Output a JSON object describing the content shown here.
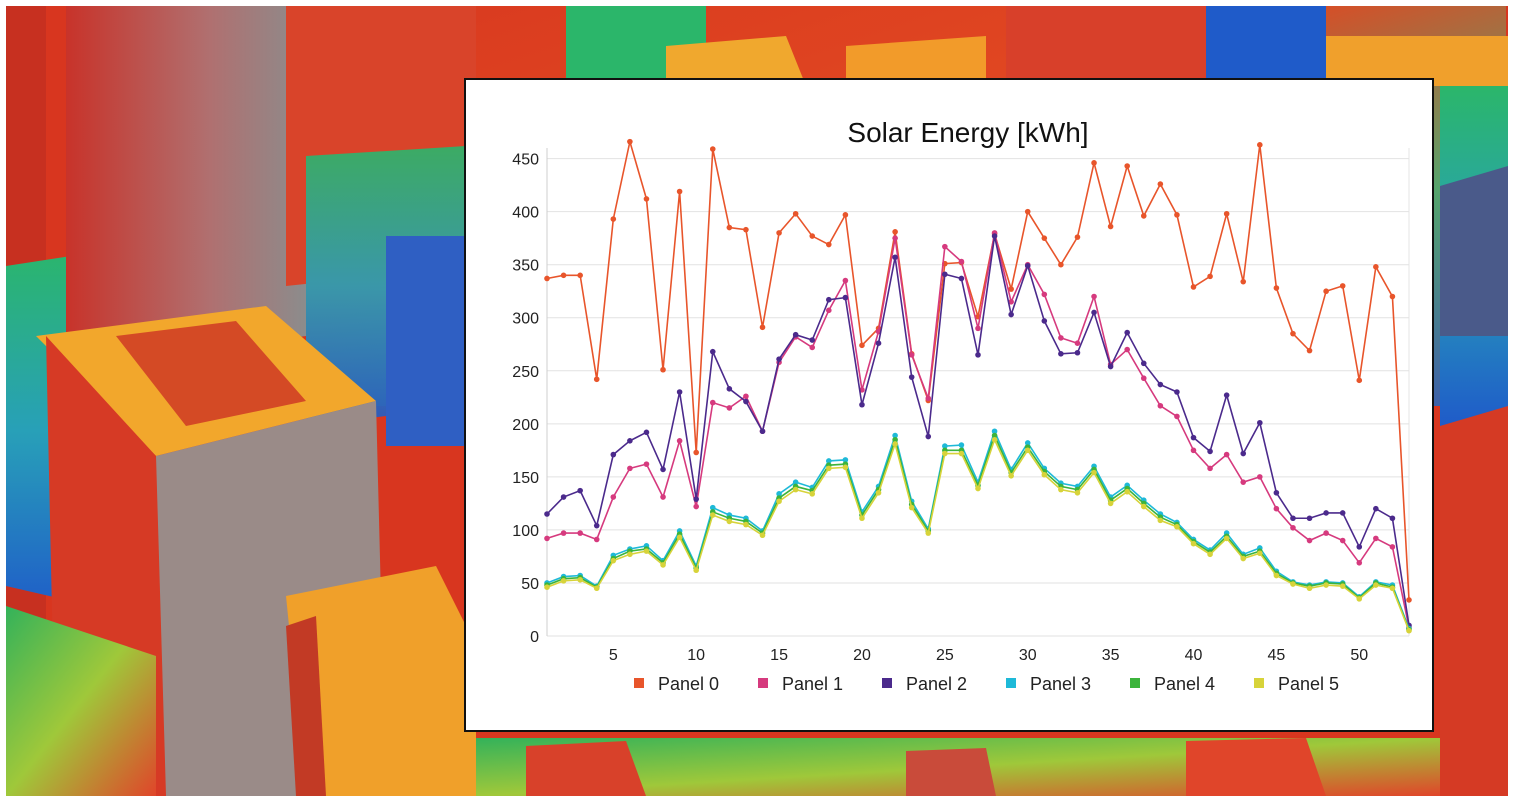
{
  "chart_data": {
    "type": "line",
    "title": "Solar Energy [kWh]",
    "xlabel": "",
    "ylabel": "",
    "x": [
      1,
      2,
      3,
      4,
      5,
      6,
      7,
      8,
      9,
      10,
      11,
      12,
      13,
      14,
      15,
      16,
      17,
      18,
      19,
      20,
      21,
      22,
      23,
      24,
      25,
      26,
      27,
      28,
      29,
      30,
      31,
      32,
      33,
      34,
      35,
      36,
      37,
      38,
      39,
      40,
      41,
      42,
      43,
      44,
      45,
      46,
      47,
      48,
      49,
      50,
      51,
      52,
      53
    ],
    "xlim": [
      1,
      53
    ],
    "ylim": [
      0,
      460
    ],
    "x_ticks": [
      5,
      10,
      15,
      20,
      25,
      30,
      35,
      40,
      45,
      50
    ],
    "y_ticks": [
      0,
      50,
      100,
      150,
      200,
      250,
      300,
      350,
      400,
      450
    ],
    "grid": "horizontal",
    "legend_position": "bottom",
    "series": [
      {
        "name": "Panel 0",
        "color": "#e8552b",
        "values": [
          337,
          340,
          340,
          242,
          393,
          466,
          412,
          251,
          419,
          173,
          459,
          385,
          383,
          291,
          380,
          398,
          377,
          369,
          397,
          274,
          290,
          381,
          266,
          222,
          351,
          352,
          301,
          379,
          327,
          400,
          375,
          350,
          376,
          446,
          386,
          443,
          396,
          426,
          397,
          329,
          339,
          398,
          334,
          463,
          328,
          285,
          269,
          325,
          330,
          241,
          348,
          320,
          34
        ]
      },
      {
        "name": "Panel 1",
        "color": "#d63a7e",
        "values": [
          92,
          97,
          97,
          91,
          131,
          158,
          162,
          131,
          184,
          122,
          220,
          215,
          226,
          193,
          258,
          282,
          272,
          307,
          335,
          232,
          287,
          375,
          265,
          224,
          367,
          353,
          290,
          380,
          315,
          350,
          322,
          281,
          276,
          320,
          256,
          270,
          243,
          217,
          207,
          175,
          158,
          171,
          145,
          150,
          120,
          102,
          90,
          97,
          90,
          69,
          92,
          84,
          8
        ]
      },
      {
        "name": "Panel 2",
        "color": "#4b2a8c",
        "values": [
          115,
          131,
          137,
          104,
          171,
          184,
          192,
          157,
          230,
          129,
          268,
          233,
          221,
          193,
          261,
          284,
          279,
          317,
          319,
          218,
          276,
          357,
          244,
          188,
          341,
          337,
          265,
          377,
          303,
          349,
          297,
          266,
          267,
          305,
          254,
          286,
          257,
          237,
          230,
          187,
          174,
          227,
          172,
          201,
          135,
          111,
          111,
          116,
          116,
          84,
          120,
          111,
          10
        ]
      },
      {
        "name": "Panel 3",
        "color": "#1eb9d8",
        "values": [
          50,
          56,
          57,
          47,
          76,
          82,
          85,
          71,
          99,
          66,
          121,
          114,
          111,
          99,
          134,
          145,
          140,
          165,
          166,
          117,
          141,
          189,
          127,
          101,
          179,
          180,
          145,
          193,
          157,
          182,
          158,
          144,
          141,
          160,
          131,
          142,
          128,
          115,
          107,
          91,
          81,
          97,
          77,
          83,
          61,
          51,
          48,
          51,
          50,
          37,
          51,
          48,
          7
        ]
      },
      {
        "name": "Panel 4",
        "color": "#3cb43c",
        "values": [
          48,
          54,
          55,
          46,
          73,
          80,
          82,
          69,
          96,
          64,
          117,
          111,
          108,
          97,
          130,
          141,
          137,
          161,
          162,
          114,
          138,
          185,
          124,
          99,
          175,
          175,
          142,
          189,
          154,
          178,
          155,
          141,
          138,
          157,
          128,
          139,
          125,
          112,
          105,
          89,
          79,
          94,
          75,
          80,
          59,
          50,
          47,
          50,
          49,
          36,
          50,
          46,
          6
        ]
      },
      {
        "name": "Panel 5",
        "color": "#d7d33a",
        "values": [
          46,
          52,
          53,
          45,
          71,
          77,
          80,
          67,
          93,
          62,
          114,
          108,
          105,
          95,
          127,
          138,
          134,
          158,
          159,
          111,
          135,
          181,
          121,
          97,
          172,
          172,
          139,
          185,
          151,
          175,
          152,
          138,
          135,
          154,
          125,
          136,
          122,
          109,
          103,
          87,
          77,
          92,
          73,
          78,
          57,
          49,
          45,
          48,
          47,
          35,
          48,
          45,
          5
        ]
      }
    ]
  }
}
